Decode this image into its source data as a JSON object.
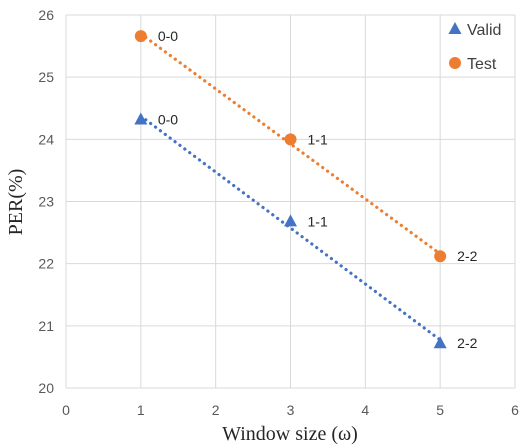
{
  "chart_data": {
    "type": "scatter",
    "xlabel": "Window size (ω)",
    "ylabel": "PER(%)",
    "xlim": [
      0,
      6
    ],
    "ylim": [
      20,
      26
    ],
    "xticks": [
      "0",
      "1",
      "2",
      "3",
      "4",
      "5",
      "6"
    ],
    "yticks": [
      "20",
      "21",
      "22",
      "23",
      "24",
      "25",
      "26"
    ],
    "grid": true,
    "legend_position": "top-right",
    "series": [
      {
        "name": "Valid",
        "marker": "triangle",
        "color": "#4472C4",
        "trendline": "dotted",
        "points": [
          {
            "x": 1,
            "y": 24.32,
            "label": "0-0"
          },
          {
            "x": 3,
            "y": 22.68,
            "label": "1-1"
          },
          {
            "x": 5,
            "y": 20.72,
            "label": "2-2"
          }
        ]
      },
      {
        "name": "Test",
        "marker": "circle",
        "color": "#ED7D31",
        "trendline": "dotted",
        "points": [
          {
            "x": 1,
            "y": 25.66,
            "label": "0-0"
          },
          {
            "x": 3,
            "y": 24.0,
            "label": "1-1"
          },
          {
            "x": 5,
            "y": 22.12,
            "label": "2-2"
          }
        ]
      }
    ]
  }
}
